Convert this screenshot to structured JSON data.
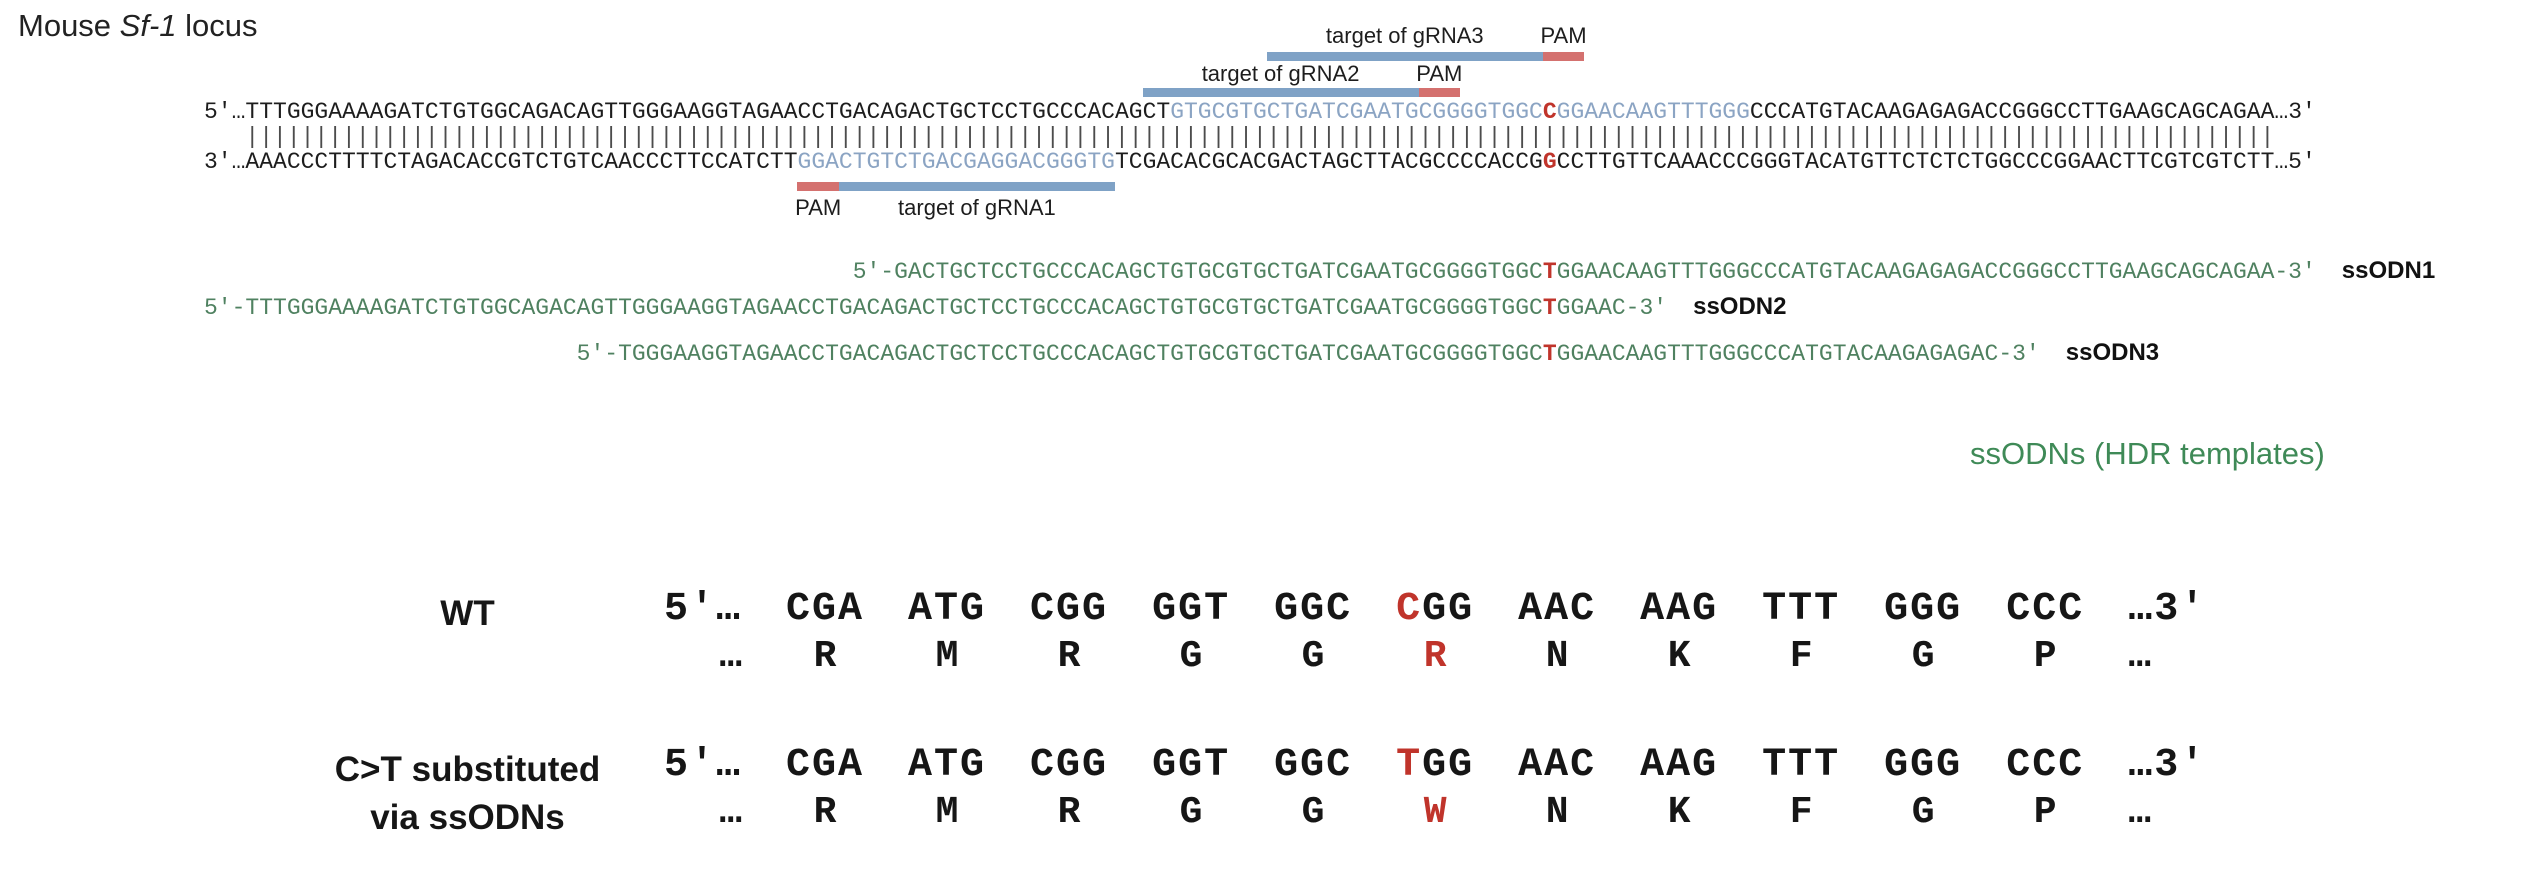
{
  "title": {
    "prefix": "Mouse ",
    "gene": "Sf-1",
    "suffix": " locus"
  },
  "colors": {
    "black_letter": "#1d1d1d",
    "blue_letter": "#8ba4c3",
    "red_letter": "#c0342b",
    "green_letter": "#4f8160",
    "green_caption": "#3f8a57",
    "target_bar": "#7fa2c6",
    "pam_bar": "#d4716f"
  },
  "locus": {
    "top_strand": {
      "prefix": "5'…",
      "suffix": "…3'",
      "segments": [
        {
          "text": "TTTGGGAAAAGATCTGTGGCAGACAGTTGGGAAGGTAGAACCTGACAGACTGCTCCTGCCCACAGCT",
          "color": "black_letter"
        },
        {
          "text": "GTGCGTGCTGATCGAATGCGGGGTGGC",
          "color": "blue_letter"
        },
        {
          "text": "C",
          "color": "red_letter"
        },
        {
          "text": "GGAACAAGTTTGGG",
          "color": "blue_letter"
        },
        {
          "text": "CCCATGTACAAGAGAGACCGGGCCTTGAAGCAGCAGAA",
          "color": "black_letter"
        }
      ]
    },
    "pairing_count": 147,
    "pairing_char": "|",
    "bottom_strand": {
      "prefix": "3'…",
      "suffix": "…5'",
      "segments": [
        {
          "text": "AAACCCTTTTCTAGACACCGTCTGTCAACCCTTCCATCTT",
          "color": "black_letter"
        },
        {
          "text": "GGACTGTCTGACGAGGACGGGTG",
          "color": "blue_letter"
        },
        {
          "text": "TCGACACGCACGACTAGCTTACGCCCCACCG",
          "color": "black_letter"
        },
        {
          "text": "G",
          "color": "red_letter"
        },
        {
          "text": "CCTTGTTCAAACCCGGGTACATGTTCTCTCTGGCCCGGAACTTCGTCGTCTT",
          "color": "black_letter"
        }
      ]
    },
    "annotations": [
      {
        "id": "grna3",
        "target_label": "target of gRNA3",
        "pam_label": "PAM",
        "bar_left_ch": 77,
        "target_ch": 20,
        "pam_ch": 3,
        "pam_side": "right",
        "placement": "above-far"
      },
      {
        "id": "grna2",
        "target_label": "target of gRNA2",
        "pam_label": "PAM",
        "bar_left_ch": 68,
        "target_ch": 20,
        "pam_ch": 3,
        "pam_side": "right",
        "placement": "above-near"
      },
      {
        "id": "grna1",
        "target_label": "target of gRNA1",
        "pam_label": "PAM",
        "bar_left_ch": 43,
        "target_ch": 20,
        "pam_ch": 3,
        "pam_side": "left",
        "placement": "below"
      }
    ]
  },
  "ssodns": [
    {
      "label": "ssODN1",
      "indent_ch": 47,
      "prefix": "5'-",
      "seq_before": "GACTGCTCCTGCCCACAGCTGTGCGTGCTGATCGAATGCGGGGTGGC",
      "mut_base": "T",
      "seq_after": "GGAACAAGTTTGGGCCCATGTACAAGAGAGACCGGGCCTTGAAGCAGCAGAA",
      "suffix": "-3'"
    },
    {
      "label": "ssODN2",
      "indent_ch": 0,
      "prefix": "5'-",
      "seq_before": "TTTGGGAAAAGATCTGTGGCAGACAGTTGGGAAGGTAGAACCTGACAGACTGCTCCTGCCCACAGCTGTGCGTGCTGATCGAATGCGGGGTGGC",
      "mut_base": "T",
      "seq_after": "GGAAC",
      "suffix": "-3'"
    },
    {
      "label": "ssODN3",
      "indent_ch": 27,
      "prefix": "5'-",
      "seq_before": "TGGGAAGGTAGAACCTGACAGACTGCTCCTGCCCACAGCTGTGCGTGCTGATCGAATGCGGGGTGGC",
      "mut_base": "T",
      "seq_after": "GGAACAAGTTTGGGCCCATGTACAAGAGAGAC",
      "suffix": "-3'"
    }
  ],
  "ssodn_caption": "ssODNs (HDR templates)",
  "codon_section": [
    {
      "name": "wt-row",
      "label_lines": [
        "WT"
      ],
      "seq_prefix": "5'…",
      "seq_suffix": "…3'",
      "aa_prefix": "…",
      "aa_suffix": "…",
      "codons": [
        {
          "codon": "CGA",
          "aa": "R"
        },
        {
          "codon": "ATG",
          "aa": "M"
        },
        {
          "codon": "CGG",
          "aa": "R"
        },
        {
          "codon": "GGT",
          "aa": "G"
        },
        {
          "codon": "GGC",
          "aa": "G"
        },
        {
          "codon": "CGG",
          "aa": "R",
          "highlight_base": 0,
          "highlight_aa": true
        },
        {
          "codon": "AAC",
          "aa": "N"
        },
        {
          "codon": "AAG",
          "aa": "K"
        },
        {
          "codon": "TTT",
          "aa": "F"
        },
        {
          "codon": "GGG",
          "aa": "G"
        },
        {
          "codon": "CCC",
          "aa": "P"
        }
      ]
    },
    {
      "name": "ct-substituted-row",
      "label_lines": [
        "C>T substituted",
        "via ssODNs"
      ],
      "seq_prefix": "5'…",
      "seq_suffix": "…3'",
      "aa_prefix": "…",
      "aa_suffix": "…",
      "codons": [
        {
          "codon": "CGA",
          "aa": "R"
        },
        {
          "codon": "ATG",
          "aa": "M"
        },
        {
          "codon": "CGG",
          "aa": "R"
        },
        {
          "codon": "GGT",
          "aa": "G"
        },
        {
          "codon": "GGC",
          "aa": "G"
        },
        {
          "codon": "TGG",
          "aa": "W",
          "highlight_base": 0,
          "highlight_aa": true
        },
        {
          "codon": "AAC",
          "aa": "N"
        },
        {
          "codon": "AAG",
          "aa": "K"
        },
        {
          "codon": "TTT",
          "aa": "F"
        },
        {
          "codon": "GGG",
          "aa": "G"
        },
        {
          "codon": "CCC",
          "aa": "P"
        }
      ]
    }
  ]
}
